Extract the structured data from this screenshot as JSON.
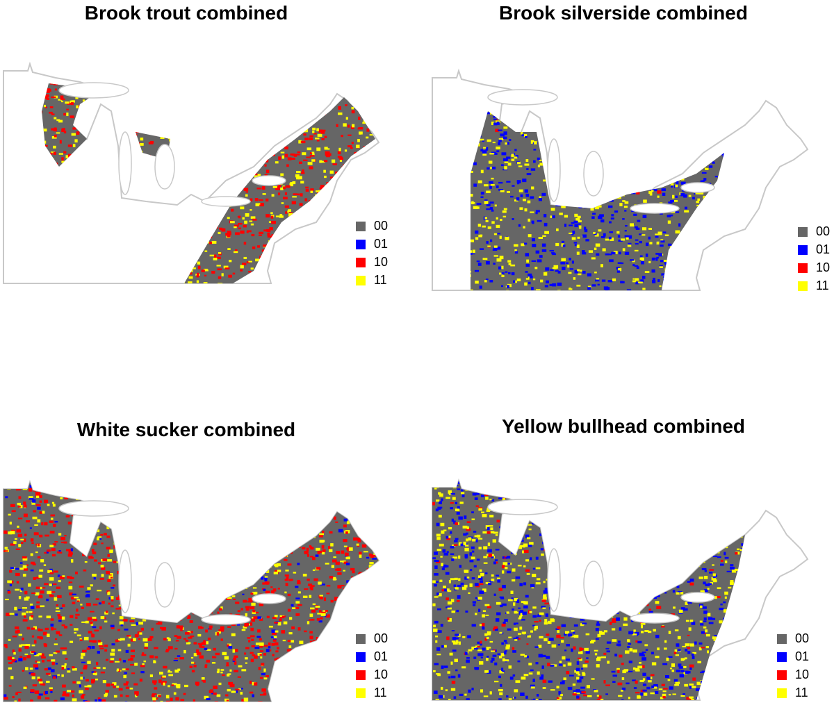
{
  "panels": [
    {
      "title": "Brook trout combined",
      "legend": [
        {
          "label": "00",
          "color": "#666666"
        },
        {
          "label": "01",
          "color": "#0000ff"
        },
        {
          "label": "10",
          "color": "#ff0000"
        },
        {
          "label": "11",
          "color": "#ffff00"
        }
      ]
    },
    {
      "title": "Brook silverside combined",
      "legend": [
        {
          "label": "00",
          "color": "#666666"
        },
        {
          "label": "01",
          "color": "#0000ff"
        },
        {
          "label": "10",
          "color": "#ff0000"
        },
        {
          "label": "11",
          "color": "#ffff00"
        }
      ]
    },
    {
      "title": "White sucker combined",
      "legend": [
        {
          "label": "00",
          "color": "#666666"
        },
        {
          "label": "01",
          "color": "#0000ff"
        },
        {
          "label": "10",
          "color": "#ff0000"
        },
        {
          "label": "11",
          "color": "#ffff00"
        }
      ]
    },
    {
      "title": "Yellow bullhead combined",
      "legend": [
        {
          "label": "00",
          "color": "#666666"
        },
        {
          "label": "01",
          "color": "#0000ff"
        },
        {
          "label": "10",
          "color": "#ff0000"
        },
        {
          "label": "11",
          "color": "#ffff00"
        }
      ]
    }
  ]
}
